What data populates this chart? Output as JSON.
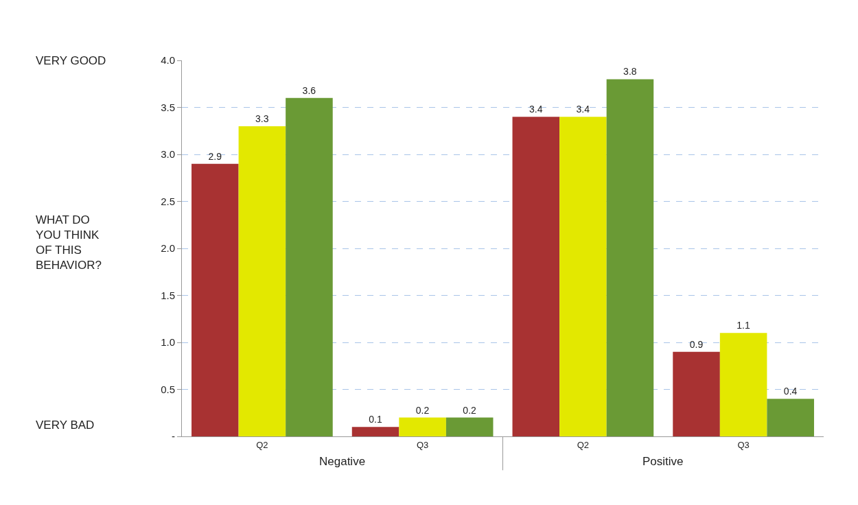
{
  "chart_data": {
    "type": "bar",
    "categories": [
      "Q2",
      "Q3",
      "Q2",
      "Q3"
    ],
    "series": [
      {
        "color": "#a83232",
        "values": [
          2.9,
          0.1,
          3.4,
          0.9
        ]
      },
      {
        "color": "#e3e800",
        "values": [
          3.3,
          0.2,
          3.4,
          1.1
        ]
      },
      {
        "color": "#6a9a35",
        "values": [
          3.6,
          0.2,
          3.8,
          0.4
        ]
      }
    ],
    "ylim": [
      0,
      4.0
    ],
    "yticks": [
      {
        "value": 0,
        "label": "-"
      },
      {
        "value": 0.5,
        "label": "0.5"
      },
      {
        "value": 1.0,
        "label": "1.0"
      },
      {
        "value": 1.5,
        "label": "1.5"
      },
      {
        "value": 2.0,
        "label": "2.0"
      },
      {
        "value": 2.5,
        "label": "2.5"
      },
      {
        "value": 3.0,
        "label": "3.0"
      },
      {
        "value": 3.5,
        "label": "3.5"
      },
      {
        "value": 4.0,
        "label": "4.0"
      }
    ],
    "annotations": [
      "VERY GOOD",
      "WHAT DO YOU THINK OF THIS BEHAVIOR?",
      "VERY BAD",
      "Negative",
      "Positive"
    ],
    "data_labels": true,
    "grid": "y"
  }
}
